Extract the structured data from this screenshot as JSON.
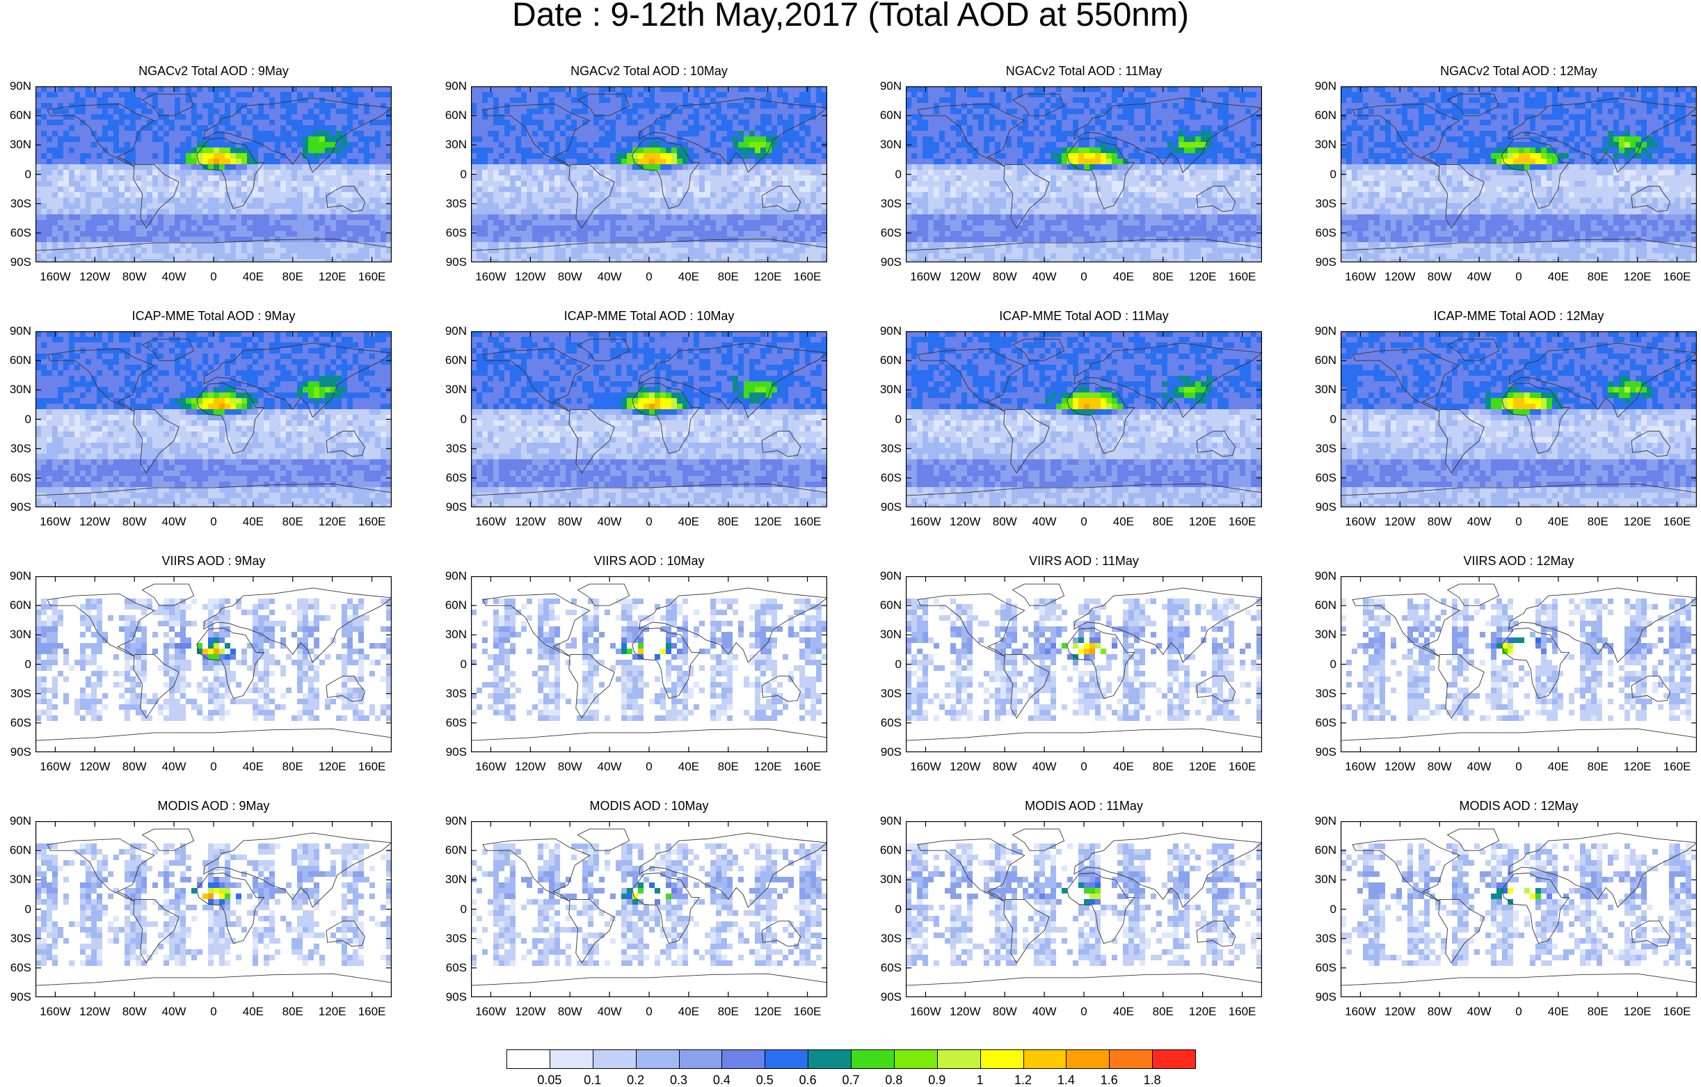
{
  "title": "Date : 9-12th May,2017 (Total AOD at 550nm)",
  "panels": [
    {
      "title": "NGACv2 Total AOD : 9May",
      "kind": "model"
    },
    {
      "title": "NGACv2 Total AOD : 10May",
      "kind": "model"
    },
    {
      "title": "NGACv2 Total AOD : 11May",
      "kind": "model"
    },
    {
      "title": "NGACv2 Total AOD : 12May",
      "kind": "model"
    },
    {
      "title": "ICAP-MME Total AOD : 9May",
      "kind": "model"
    },
    {
      "title": "ICAP-MME Total AOD : 10May",
      "kind": "model"
    },
    {
      "title": "ICAP-MME Total AOD : 11May",
      "kind": "model"
    },
    {
      "title": "ICAP-MME Total AOD : 12May",
      "kind": "model"
    },
    {
      "title": "VIIRS AOD : 9May",
      "kind": "viirs"
    },
    {
      "title": "VIIRS AOD : 10May",
      "kind": "viirs"
    },
    {
      "title": "VIIRS AOD : 11May",
      "kind": "viirs"
    },
    {
      "title": "VIIRS AOD : 12May",
      "kind": "viirs"
    },
    {
      "title": "MODIS AOD : 9May",
      "kind": "modis"
    },
    {
      "title": "MODIS AOD : 10May",
      "kind": "modis"
    },
    {
      "title": "MODIS AOD : 11May",
      "kind": "modis"
    },
    {
      "title": "MODIS AOD : 12May",
      "kind": "modis"
    }
  ],
  "lat_labels": [
    "90N",
    "60N",
    "30N",
    "0",
    "30S",
    "60S",
    "90S"
  ],
  "lon_labels": [
    "160W",
    "120W",
    "80W",
    "40W",
    "0",
    "40E",
    "80E",
    "120E",
    "160E"
  ],
  "colorbar": {
    "labels": [
      "0.05",
      "0.1",
      "0.2",
      "0.3",
      "0.4",
      "0.5",
      "0.6",
      "0.7",
      "0.8",
      "0.9",
      "1",
      "1.2",
      "1.4",
      "1.6",
      "1.8"
    ],
    "colors": [
      "#ffffff",
      "#dde6fb",
      "#c3d1f7",
      "#a3b9f3",
      "#8aa2ee",
      "#6b82ea",
      "#2a6ff0",
      "#0b8c8c",
      "#3fdc1a",
      "#7cea0b",
      "#c6f33b",
      "#ffff00",
      "#ffc800",
      "#ffa000",
      "#ff7a14",
      "#ff2a1c"
    ]
  }
}
